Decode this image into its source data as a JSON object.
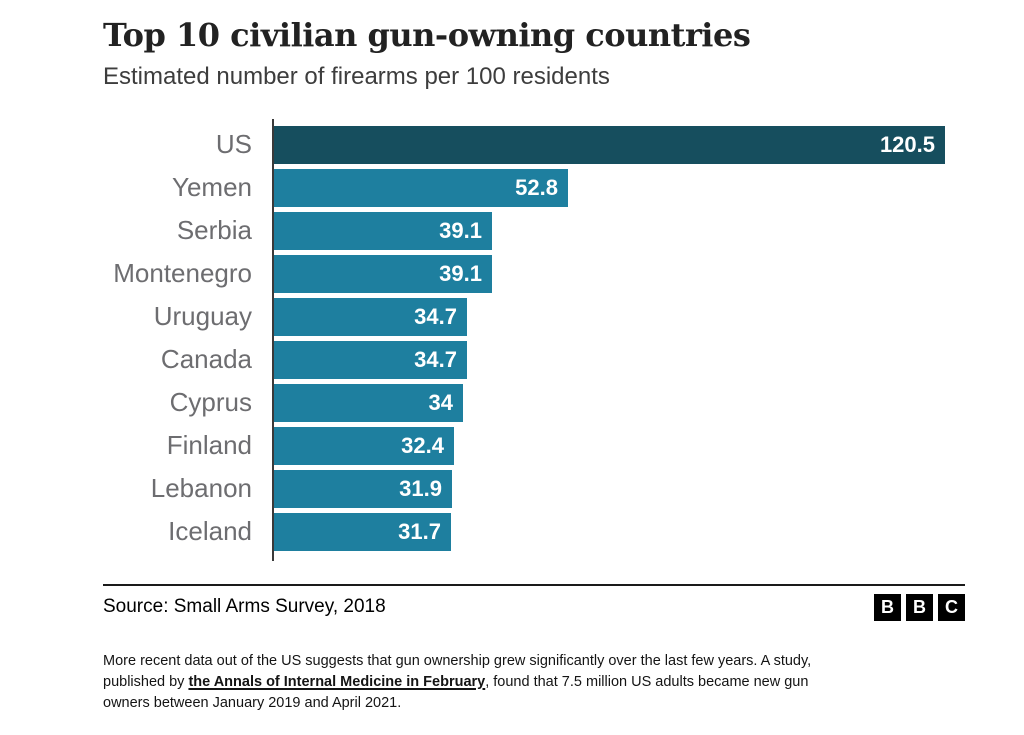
{
  "chart_data": {
    "type": "bar",
    "orientation": "horizontal",
    "title": "Top 10 civilian gun-owning countries",
    "subtitle": "Estimated number of firearms per 100 residents",
    "categories": [
      "US",
      "Yemen",
      "Serbia",
      "Montenegro",
      "Uruguay",
      "Canada",
      "Cyprus",
      "Finland",
      "Lebanon",
      "Iceland"
    ],
    "values": [
      120.5,
      52.8,
      39.1,
      39.1,
      34.7,
      34.7,
      34,
      32.4,
      31.9,
      31.7
    ],
    "value_labels": [
      "120.5",
      "52.8",
      "39.1",
      "39.1",
      "34.7",
      "34.7",
      "34",
      "32.4",
      "31.9",
      "31.7"
    ],
    "xlim": [
      0,
      120.5
    ],
    "grid": false,
    "legend": "none",
    "highlight_index": 0,
    "bar_color": "#1e7f9f",
    "highlight_color": "#164e5e",
    "value_label_color": "#ffffff",
    "category_label_color": "#6d6d70"
  },
  "source": {
    "label": "Source: Small Arms Survey, 2018"
  },
  "logo": {
    "name": "BBC",
    "letters": [
      "B",
      "B",
      "C"
    ]
  },
  "footer": {
    "text_before": "More recent data out of the US suggests that gun ownership grew significantly over the last few years. A study, published by ",
    "link_text": "the Annals of Internal Medicine in February",
    "text_after": ", found that 7.5 million US adults became new gun owners between January 2019 and April 2021."
  }
}
